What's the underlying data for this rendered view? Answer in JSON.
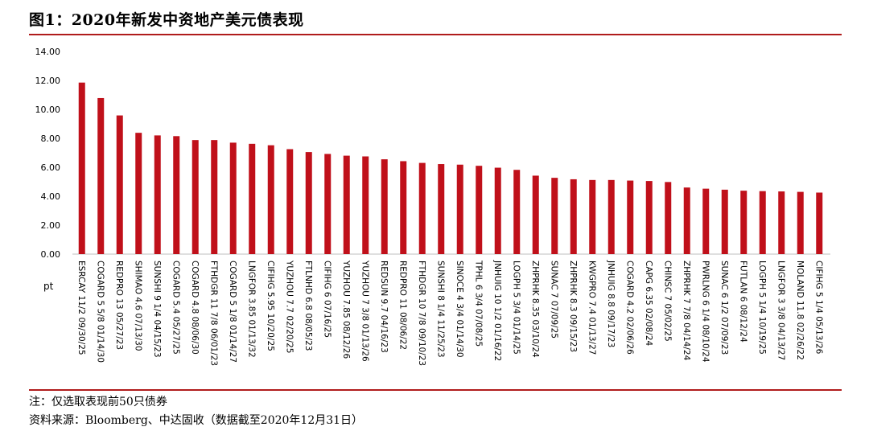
{
  "header": {
    "title": "图1：2020年新发中资地产美元债表现"
  },
  "footer": {
    "note": "注：仅选取表现前50只债券",
    "source": "资料来源：Bloomberg、中达固收（数据截至2020年12月31日）"
  },
  "colors": {
    "bar": "#c0101a",
    "rule": "#b01c1c"
  },
  "chart_data": {
    "type": "bar",
    "title": "",
    "xlabel": "",
    "ylabel": "pt",
    "ylim": [
      0,
      14
    ],
    "yticks": [
      "0.00",
      "2.00",
      "4.00",
      "6.00",
      "8.00",
      "10.00",
      "12.00",
      "14.00"
    ],
    "grid": false,
    "categories": [
      "ESRCAY 11/2 09/30/25",
      "COGARD 5 5/8 01/14/30",
      "REDPRO 13 05/27/23",
      "SHIMAO 4.6 07/13/30",
      "SUNSHI 9 1/4 04/15/23",
      "COGARD 5.4 05/27/25",
      "COGARD 4.8 08/06/30",
      "FTHDGR 11 7/8 06/01/23",
      "COGARD 5 1/8 01/14/27",
      "LNGFOR 3.85 01/13/32",
      "CIFIHG 5.95 10/20/25",
      "YUZHOU 7.7 02/20/25",
      "FTLNHD 6.8 08/05/23",
      "CIFIHG 6 07/16/25",
      "YUZHOU 7.85 08/12/26",
      "YUZHOU 7 3/8 01/13/26",
      "REDSUN 9.7 04/16/23",
      "REDPRO 11 08/06/22",
      "FTHDGR 10 7/8 09/10/23",
      "SUNSHI 8 1/4 11/25/23",
      "SINOCE 4 3/4 01/14/30",
      "TPHL 6 3/4 07/08/25",
      "JNHUIG 10 1/2 01/16/22",
      "LOGPH 5 3/4 01/14/25",
      "ZHPRHK 8.35 03/10/24",
      "SUNAC 7 07/09/25",
      "ZHPRHK 8.3 09/15/23",
      "KWGPRO 7.4 01/13/27",
      "JNHUIG 8.8 09/17/23",
      "COGARD 4.2 02/06/26",
      "CAPG 6.35 02/08/24",
      "CHINSC 7 05/02/25",
      "ZHPRHK 7 7/8 04/14/24",
      "PWRLNG 6 1/4 08/10/24",
      "SUNAC 6 1/2 07/09/23",
      "FUTLAN 6 08/12/24",
      "LOGPH 5 1/4 10/19/25",
      "LNGFOR 3 3/8 04/13/27",
      "MOLAND 11.8 02/26/22",
      "CIFIHG 5 1/4 05/13/26"
    ],
    "values": [
      11.85,
      10.78,
      9.58,
      8.38,
      8.2,
      8.15,
      7.88,
      7.88,
      7.7,
      7.62,
      7.52,
      7.25,
      7.05,
      6.92,
      6.8,
      6.75,
      6.55,
      6.42,
      6.3,
      6.22,
      6.18,
      6.1,
      5.97,
      5.82,
      5.42,
      5.27,
      5.17,
      5.12,
      5.12,
      5.08,
      5.05,
      4.98,
      4.6,
      4.52,
      4.45,
      4.38,
      4.35,
      4.33,
      4.3,
      4.25
    ]
  }
}
